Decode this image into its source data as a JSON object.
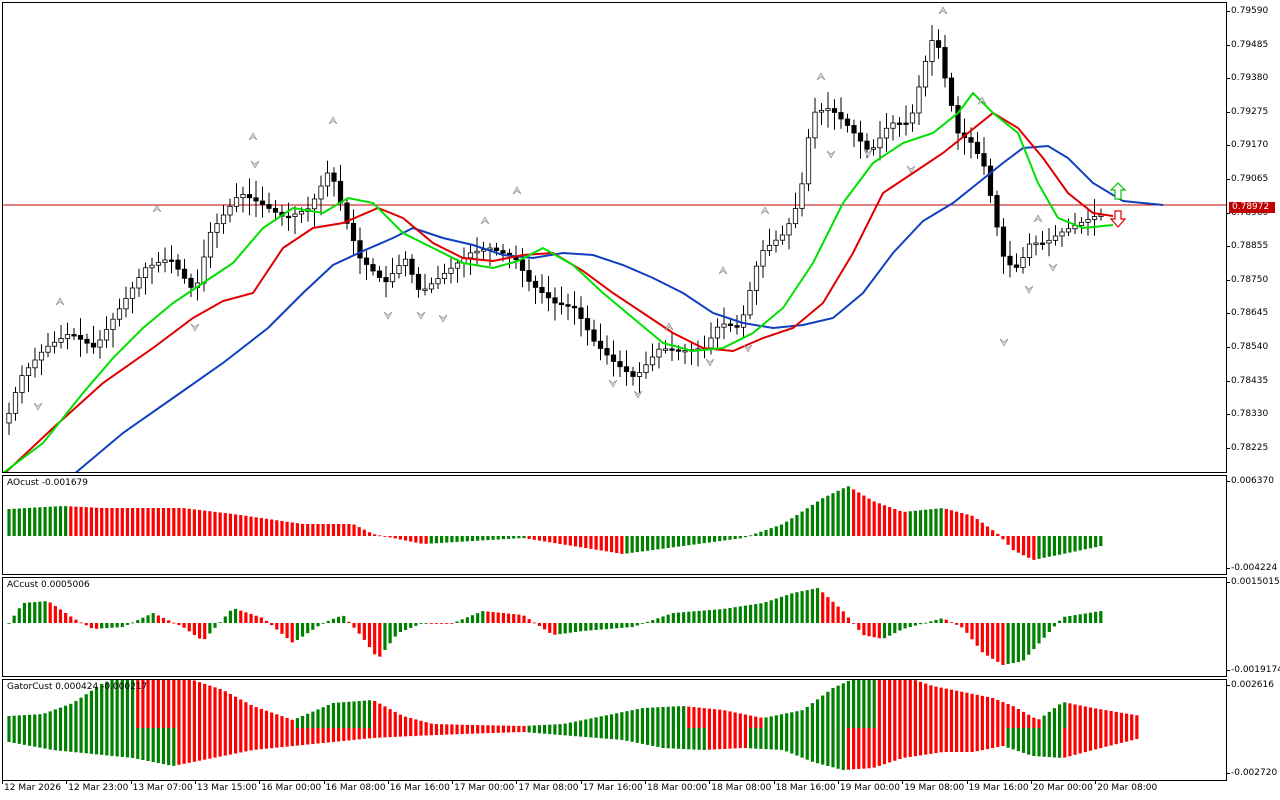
{
  "main_chart": {
    "price_axis": [
      "0.79590",
      "0.79485",
      "0.79380",
      "0.79275",
      "0.79170",
      "0.79065",
      "0.78960",
      "0.78855",
      "0.78750",
      "0.78645",
      "0.78540",
      "0.78435",
      "0.78330",
      "0.78225"
    ],
    "current_price": "0.78972",
    "current_price_line_color": "#c00000",
    "line_colors": {
      "green": "#00e000",
      "red": "#e00000",
      "blue": "#1040c0"
    },
    "signal_icons": [
      "up-arrow-icon",
      "down-arrow-icon"
    ]
  },
  "ao_pane": {
    "label": "AOcust -0.001679",
    "axis_top": "0.006370",
    "axis_bottom": "-0.004224"
  },
  "ac_pane": {
    "label": "ACcust 0.0005006",
    "axis_top": "0.0015015",
    "axis_bottom": "-0.0019174"
  },
  "gator_pane": {
    "label": "GatorCust 0.000424 -0.000217",
    "axis_top": "0.002616",
    "axis_bottom": "-0.002720"
  },
  "time_axis": [
    "12 Mar 2026",
    "12 Mar 23:00",
    "13 Mar 07:00",
    "13 Mar 15:00",
    "16 Mar 00:00",
    "16 Mar 08:00",
    "16 Mar 16:00",
    "17 Mar 00:00",
    "17 Mar 08:00",
    "17 Mar 16:00",
    "18 Mar 00:00",
    "18 Mar 08:00",
    "18 Mar 16:00",
    "19 Mar 00:00",
    "19 Mar 08:00",
    "19 Mar 16:00",
    "20 Mar 00:00",
    "20 Mar 08:00"
  ],
  "colors": {
    "up": "#008000",
    "down": "#ff0000",
    "candle_up": "#ffffff",
    "candle_down": "#000000"
  }
}
